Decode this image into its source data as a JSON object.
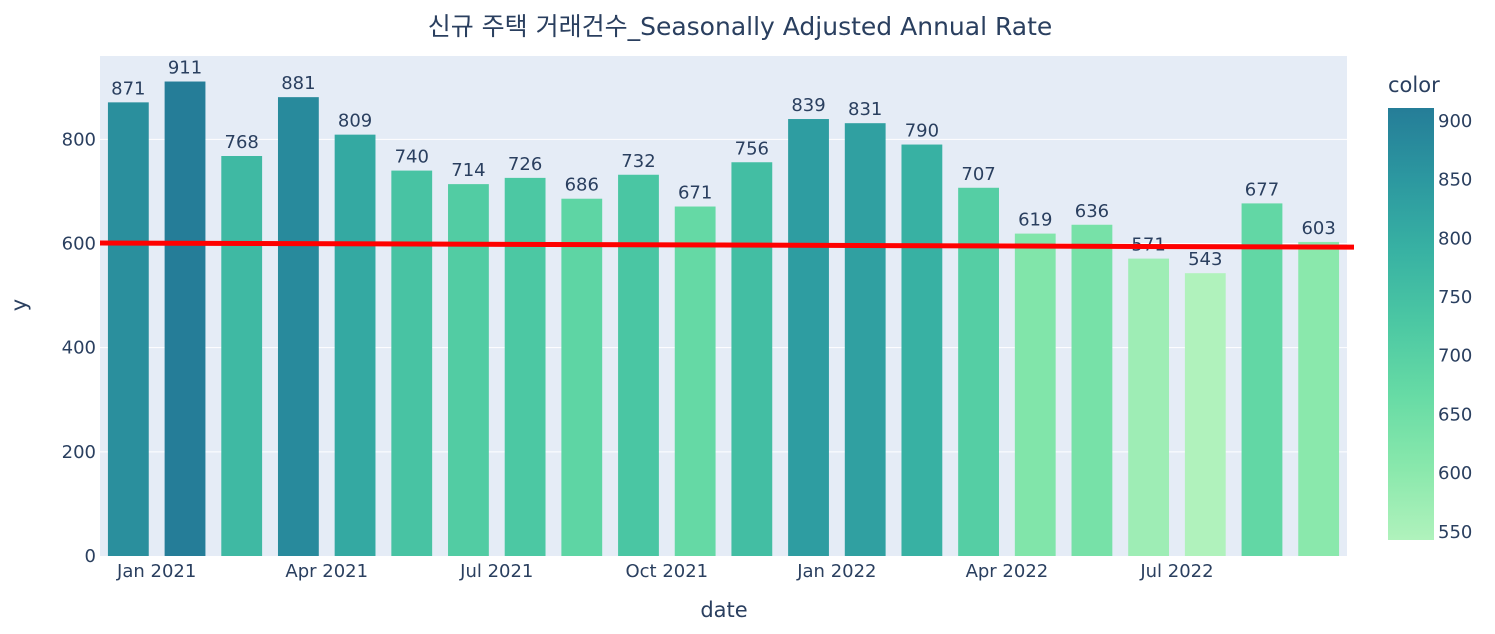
{
  "chart_data": {
    "type": "bar",
    "title": "신규 주택 거래건수_Seasonally Adjusted Annual Rate",
    "xlabel": "date",
    "ylabel": "y",
    "ylim": [
      0,
      960
    ],
    "yticks": [
      0,
      200,
      400,
      600,
      800
    ],
    "x": [
      "2020-12",
      "2021-01",
      "2021-02",
      "2021-03",
      "2021-04",
      "2021-05",
      "2021-06",
      "2021-07",
      "2021-08",
      "2021-09",
      "2021-10",
      "2021-11",
      "2021-12",
      "2022-01",
      "2022-02",
      "2022-03",
      "2022-04",
      "2022-05",
      "2022-06",
      "2022-07",
      "2022-08",
      "2022-09"
    ],
    "xtick_labels": [
      {
        "x": "2021-01",
        "label": "Jan 2021"
      },
      {
        "x": "2021-04",
        "label": "Apr 2021"
      },
      {
        "x": "2021-07",
        "label": "Jul 2021"
      },
      {
        "x": "2021-10",
        "label": "Oct 2021"
      },
      {
        "x": "2022-01",
        "label": "Jan 2022"
      },
      {
        "x": "2022-04",
        "label": "Apr 2022"
      },
      {
        "x": "2022-07",
        "label": "Jul 2022"
      }
    ],
    "values": [
      871,
      911,
      768,
      881,
      809,
      740,
      714,
      726,
      686,
      732,
      671,
      756,
      839,
      831,
      790,
      707,
      619,
      636,
      571,
      543,
      677,
      603
    ],
    "trendline": {
      "color": "#ff0000",
      "start": 601,
      "end": 593
    },
    "colorbar": {
      "title": "color",
      "ticks": [
        550,
        600,
        650,
        700,
        750,
        800,
        850,
        900
      ],
      "range": [
        543,
        911
      ],
      "colors": [
        "#b0f2bc",
        "#89e8ac",
        "#67dba5",
        "#4cc8a3",
        "#38b2a3",
        "#2c98a0",
        "#257d98"
      ]
    },
    "grid": true,
    "plot_bg": "#e5ecf6"
  }
}
